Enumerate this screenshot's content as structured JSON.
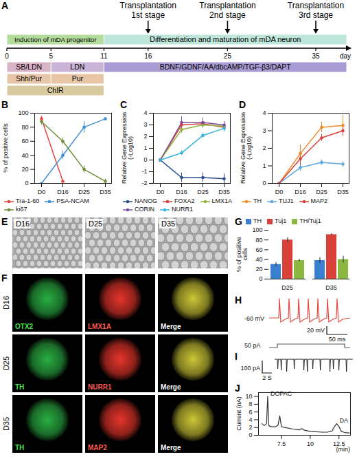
{
  "timeline": {
    "panel": "A",
    "axis_label": "day",
    "ticks": [
      0,
      5,
      11,
      16,
      25,
      35
    ],
    "transplantations": [
      {
        "day": 16,
        "label": "Transplantation",
        "stage": "1st stage"
      },
      {
        "day": 25,
        "label": "Transplantation",
        "stage": "2nd stage"
      },
      {
        "day": 35,
        "label": "Transplantation",
        "stage": "3rd stage"
      }
    ],
    "phases": [
      {
        "label": "Induction of mDA progenitor",
        "start": 0,
        "end": 11,
        "color": "#b4dc9c"
      },
      {
        "label": "Differentiation and maturation of mDA neuron",
        "start": 11,
        "color": "#bfe6da"
      }
    ],
    "treatment_rows": [
      [
        {
          "label": "SB/LDN",
          "start": 0,
          "end": 5,
          "color": "#d9b3c6"
        },
        {
          "label": "LDN",
          "start": 5,
          "end": 11,
          "color": "#c9b3d6"
        },
        {
          "label": "BDNF/GDNF/AA/dbcAMP/TGF-β3/DAPT",
          "start": 11,
          "color": "#a99bd3"
        }
      ],
      [
        {
          "label": "Shh/Pur",
          "start": 0,
          "end": 5,
          "color": "#e6c6a6"
        },
        {
          "label": "Pur",
          "start": 5,
          "end": 11,
          "color": "#e6c6a6"
        }
      ],
      [
        {
          "label": "ChIR",
          "start": 0,
          "end": 11,
          "color": "#d9cba0"
        }
      ]
    ]
  },
  "chart_data": [
    {
      "panel": "B",
      "type": "line",
      "ylabel": "% of positive cells",
      "categories": [
        "D0",
        "D16",
        "D25",
        "D35"
      ],
      "ylim": [
        0,
        100
      ],
      "yticks": [
        0,
        20,
        40,
        60,
        80,
        100
      ],
      "marker": "circle",
      "legend": "bottom",
      "series": [
        {
          "name": "Tra-1-60",
          "color": "#e2463f",
          "values": [
            92,
            3,
            null,
            null
          ],
          "errors": [
            4,
            2,
            null,
            null
          ]
        },
        {
          "name": "PSA-NCAM",
          "color": "#3f8fd8",
          "values": [
            0,
            40,
            80,
            92
          ],
          "errors": [
            0,
            6,
            8,
            2
          ]
        },
        {
          "name": "ki67",
          "color": "#6f8f3a",
          "values": [
            88,
            60,
            20,
            3
          ],
          "errors": [
            5,
            5,
            5,
            3
          ]
        }
      ]
    },
    {
      "panel": "C",
      "type": "line",
      "ylabel": "Relative Gene Expression (-Log10)",
      "categories": [
        "D0",
        "D16",
        "D25",
        "D35"
      ],
      "ylim": [
        -2,
        4
      ],
      "yticks": [
        -2,
        -1,
        0,
        1,
        2,
        3,
        4
      ],
      "marker": "circle",
      "legend": "bottom",
      "series": [
        {
          "name": "NANOG",
          "color": "#2a4d8f",
          "values": [
            0,
            -1.5,
            -1.5,
            -1.6
          ],
          "errors": [
            0,
            0.4,
            0.4,
            0.4
          ]
        },
        {
          "name": "FOXA2",
          "color": "#d9413b",
          "values": [
            0,
            3.0,
            3.1,
            2.8
          ],
          "errors": [
            0,
            0.3,
            0.2,
            0.3
          ]
        },
        {
          "name": "LMX1A",
          "color": "#8fb33b",
          "values": [
            0,
            2.6,
            3.0,
            2.9
          ],
          "errors": [
            0,
            0.3,
            0.3,
            0.3
          ]
        },
        {
          "name": "CORIN",
          "color": "#7a4fa0",
          "values": [
            0,
            3.2,
            3.2,
            3.0
          ],
          "errors": [
            0,
            0.5,
            0.4,
            0.3
          ]
        },
        {
          "name": "NURR1",
          "color": "#35b5d8",
          "values": [
            0,
            0.6,
            2.1,
            2.7
          ],
          "errors": [
            0,
            0.2,
            0.2,
            0.3
          ]
        }
      ]
    },
    {
      "panel": "D",
      "type": "line",
      "ylabel": "Relative Gene Expression (-Log10)",
      "categories": [
        "D0",
        "D16",
        "D25",
        "D35"
      ],
      "ylim": [
        0,
        4
      ],
      "yticks": [
        0,
        1,
        2,
        3,
        4
      ],
      "marker": "circle",
      "legend": "bottom",
      "series": [
        {
          "name": "TH",
          "color": "#f08a24",
          "values": [
            0,
            1.7,
            3.2,
            3.3
          ],
          "errors": [
            0,
            0.5,
            0.3,
            0.6
          ]
        },
        {
          "name": "TUJ1",
          "color": "#5aa9e0",
          "values": [
            0,
            0.9,
            1.2,
            1.1
          ],
          "errors": [
            0,
            0.2,
            0.15,
            0.15
          ]
        },
        {
          "name": "MAP2",
          "color": "#d9413b",
          "values": [
            0,
            1.4,
            2.6,
            3.0
          ],
          "errors": [
            0,
            0.4,
            0.2,
            0.3
          ]
        }
      ]
    },
    {
      "panel": "G",
      "type": "bar",
      "ylabel": "% of positive cells",
      "categories": [
        "D25",
        "D35"
      ],
      "ylim": [
        0,
        100
      ],
      "yticks": [
        0,
        20,
        40,
        60,
        80,
        100
      ],
      "legend": "top",
      "series": [
        {
          "name": "TH",
          "color": "#3b7fd0",
          "values": [
            30,
            38
          ],
          "errors": [
            4,
            6
          ]
        },
        {
          "name": "Tuj1",
          "color": "#d9413b",
          "values": [
            80,
            91
          ],
          "errors": [
            5,
            2
          ]
        },
        {
          "name": "TH/Tuj1",
          "color": "#8ab840",
          "values": [
            38,
            40
          ],
          "errors": [
            3,
            7
          ]
        }
      ]
    },
    {
      "panel": "J",
      "type": "line",
      "ylabel": "Current (nA)",
      "xlabel": "(min)",
      "x": [
        5.8,
        6.0,
        6.2,
        6.3,
        6.4,
        6.6,
        7.0,
        7.2,
        7.35,
        7.5,
        8.0,
        8.5,
        9.0,
        9.3,
        9.5,
        10.0,
        10.5,
        11.0,
        11.5,
        11.9,
        12.1,
        12.3,
        12.5,
        12.7,
        13.0,
        13.4
      ],
      "values": [
        3.0,
        2.5,
        3.0,
        10,
        2.5,
        2.2,
        2.2,
        2.6,
        5,
        2.2,
        1.9,
        1.6,
        1.4,
        1.7,
        1.3,
        1.0,
        0.9,
        0.8,
        0.8,
        1.1,
        2.2,
        3.0,
        2.2,
        1.0,
        0.7,
        0.6
      ],
      "color": "#333333",
      "xlim": [
        5.5,
        13.5
      ],
      "xticks": [
        7.5,
        10,
        12.5
      ],
      "ylim": [
        0,
        11
      ],
      "yticks": [
        0,
        2,
        4,
        6,
        8,
        10
      ],
      "annotations": [
        {
          "text": "DOPAC",
          "x": 6.3,
          "y": 10
        },
        {
          "text": "DA",
          "x": 12.3,
          "y": 3.0
        }
      ]
    }
  ],
  "phase_contrast": {
    "panel": "E",
    "images": [
      "D16",
      "D25",
      "D35"
    ]
  },
  "immunostaining": {
    "panel": "F",
    "rows": [
      {
        "label": "D16",
        "channels": [
          "OTX2",
          "LMX1A",
          "Merge"
        ]
      },
      {
        "label": "D25",
        "channels": [
          "TH",
          "NURR1",
          "Merge"
        ]
      },
      {
        "label": "D35",
        "channels": [
          "TH",
          "MAP2",
          "Merge"
        ]
      }
    ]
  },
  "electrophysiology": [
    {
      "panel": "H",
      "holding": "-60 mV",
      "scale_y": "20 mV",
      "scale_x": "50 ms",
      "stimulus": "50 pA"
    },
    {
      "panel": "I",
      "scale_x": "2 S",
      "scale_y": "100 pA"
    }
  ]
}
